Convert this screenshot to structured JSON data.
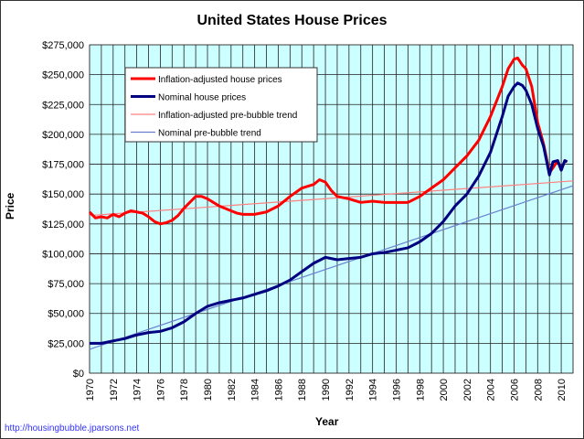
{
  "chart_data": {
    "type": "line",
    "title": "United States House Prices",
    "xlabel": "Year",
    "ylabel": "Price",
    "xlim": [
      1970,
      2011
    ],
    "ylim": [
      0,
      275000
    ],
    "grid": true,
    "legend_position": "top-left",
    "plot_background": "#ccffff",
    "x_ticks": [
      "1970",
      "1972",
      "1974",
      "1976",
      "1978",
      "1980",
      "1982",
      "1984",
      "1986",
      "1988",
      "1990",
      "1992",
      "1994",
      "1996",
      "1998",
      "2000",
      "2002",
      "2004",
      "2006",
      "2008",
      "2010"
    ],
    "y_ticks": [
      "$0",
      "$25,000",
      "$50,000",
      "$75,000",
      "$100,000",
      "$125,000",
      "$150,000",
      "$175,000",
      "$200,000",
      "$225,000",
      "$250,000",
      "$275,000"
    ],
    "series": [
      {
        "name": "Inflation-adjusted house prices",
        "color": "#ff0000",
        "width": "thick",
        "x": [
          1970,
          1970.5,
          1971,
          1971.5,
          1972,
          1972.5,
          1973,
          1973.5,
          1974,
          1974.5,
          1975,
          1975.5,
          1976,
          1976.5,
          1977,
          1977.5,
          1978,
          1978.5,
          1979,
          1979.5,
          1980,
          1980.5,
          1981,
          1981.5,
          1982,
          1982.5,
          1983,
          1984,
          1985,
          1986,
          1987,
          1988,
          1989,
          1989.5,
          1990,
          1990.5,
          1991,
          1992,
          1993,
          1994,
          1995,
          1996,
          1997,
          1998,
          1999,
          2000,
          2001,
          2002,
          2003,
          2004,
          2005,
          2005.5,
          2006,
          2006.3,
          2006.7,
          2007,
          2007.5,
          2008,
          2008.5,
          2009,
          2009.3,
          2009.7,
          2010,
          2010.3,
          2010.5
        ],
        "y": [
          135000,
          130000,
          131000,
          130000,
          133000,
          131000,
          134000,
          136000,
          135000,
          134000,
          131000,
          127000,
          125000,
          126000,
          128000,
          132000,
          138000,
          143000,
          148000,
          148000,
          146000,
          143000,
          140000,
          138000,
          136000,
          134000,
          133000,
          133000,
          135000,
          140000,
          148000,
          155000,
          158000,
          162000,
          160000,
          153000,
          148000,
          146000,
          143000,
          144000,
          143000,
          143000,
          143000,
          148000,
          155000,
          162000,
          172000,
          182000,
          195000,
          215000,
          240000,
          255000,
          263000,
          264000,
          258000,
          255000,
          240000,
          210000,
          192000,
          168000,
          172000,
          178000,
          170000,
          178000,
          177000
        ]
      },
      {
        "name": "Nominal house prices",
        "color": "#000080",
        "width": "thick",
        "x": [
          1970,
          1971,
          1972,
          1973,
          1974,
          1975,
          1976,
          1977,
          1978,
          1979,
          1980,
          1981,
          1982,
          1983,
          1984,
          1985,
          1986,
          1987,
          1988,
          1989,
          1990,
          1991,
          1992,
          1993,
          1994,
          1995,
          1996,
          1997,
          1998,
          1999,
          2000,
          2001,
          2002,
          2003,
          2004,
          2005,
          2005.5,
          2006,
          2006.3,
          2006.7,
          2007,
          2007.5,
          2008,
          2008.5,
          2009,
          2009.3,
          2009.7,
          2010,
          2010.3,
          2010.5
        ],
        "y": [
          25000,
          25000,
          27000,
          29000,
          32000,
          34000,
          35000,
          38000,
          43000,
          50000,
          56000,
          59000,
          61000,
          63000,
          66000,
          69000,
          73000,
          78000,
          85000,
          92000,
          97000,
          95000,
          96000,
          97000,
          100000,
          101000,
          103000,
          105000,
          110000,
          117000,
          127000,
          140000,
          150000,
          165000,
          185000,
          215000,
          232000,
          240000,
          243000,
          241000,
          237000,
          225000,
          205000,
          190000,
          166000,
          177000,
          178000,
          170000,
          178000,
          177000
        ]
      },
      {
        "name": "Inflation-adjusted pre-bubble trend",
        "color": "#ff8080",
        "width": "thin",
        "x": [
          1970,
          2011
        ],
        "y": [
          132000,
          161000
        ]
      },
      {
        "name": "Nominal pre-bubble trend",
        "color": "#6a7fd0",
        "width": "thin",
        "x": [
          1970,
          2011
        ],
        "y": [
          20000,
          157000
        ]
      }
    ]
  },
  "footer": "http://housingbubble.jparsons.net"
}
